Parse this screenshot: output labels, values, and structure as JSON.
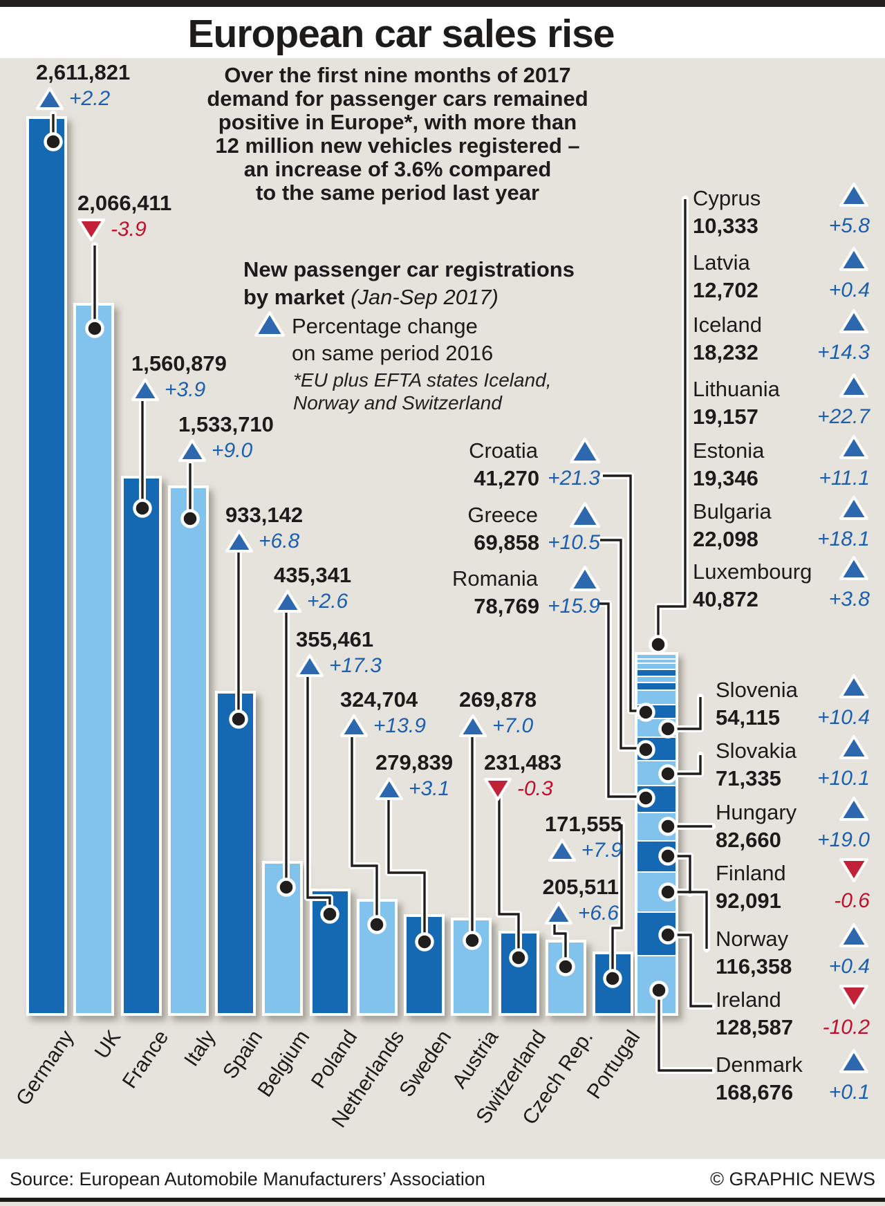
{
  "title": "European car sales rise",
  "intro_lines": [
    "Over the first nine months of 2017",
    "demand for passenger cars remained",
    "positive in Europe*, with more than",
    "12 million new vehicles registered –",
    "an increase of 3.6% compared",
    "to the same period last year"
  ],
  "subtitle": {
    "line1": "New passenger car registrations",
    "line2_bold": "by market",
    "line2_italic": " (Jan-Sep 2017)"
  },
  "legend": {
    "arrow_icon": "up-arrow",
    "label_line1": "Percentage change",
    "label_line2": "on same period 2016",
    "footnote_line1": "*EU plus EFTA states Iceland,",
    "footnote_line2": "Norway and Switzerland"
  },
  "footer": {
    "source": "Source: European Automobile Manufacturers’ Association",
    "credit": "© GRAPHIC NEWS"
  },
  "colors": {
    "background": "#e6e3dc",
    "dark_bar": "#1569b3",
    "light_bar": "#82c3ee",
    "up_arrow": "#2d68af",
    "down_arrow": "#c22237",
    "pct_up_text": "#1c5fae",
    "pct_down_text": "#c00f2d",
    "ink": "#1c1b19"
  },
  "chart_data": {
    "type": "bar",
    "title": "New passenger car registrations by market (Jan-Sep 2017)",
    "note": "Triangle markers show percentage change on same period 2016; *EU plus EFTA states Iceland, Norway and Switzerland",
    "bars": [
      {
        "country": "Germany",
        "value": 2611821,
        "value_label": "2,611,821",
        "pct": 2.2,
        "pct_label": "+2.2",
        "direction": "up",
        "shade": "dark"
      },
      {
        "country": "UK",
        "value": 2066411,
        "value_label": "2,066,411",
        "pct": -3.9,
        "pct_label": "-3.9",
        "direction": "down",
        "shade": "light"
      },
      {
        "country": "France",
        "value": 1560879,
        "value_label": "1,560,879",
        "pct": 3.9,
        "pct_label": "+3.9",
        "direction": "up",
        "shade": "dark"
      },
      {
        "country": "Italy",
        "value": 1533710,
        "value_label": "1,533,710",
        "pct": 9.0,
        "pct_label": "+9.0",
        "direction": "up",
        "shade": "light"
      },
      {
        "country": "Spain",
        "value": 933142,
        "value_label": "933,142",
        "pct": 6.8,
        "pct_label": "+6.8",
        "direction": "up",
        "shade": "dark"
      },
      {
        "country": "Belgium",
        "value": 435341,
        "value_label": "435,341",
        "pct": 2.6,
        "pct_label": "+2.6",
        "direction": "up",
        "shade": "light"
      },
      {
        "country": "Poland",
        "value": 355461,
        "value_label": "355,461",
        "pct": 17.3,
        "pct_label": "+17.3",
        "direction": "up",
        "shade": "dark"
      },
      {
        "country": "Netherlands",
        "value": 324704,
        "value_label": "324,704",
        "pct": 13.9,
        "pct_label": "+13.9",
        "direction": "up",
        "shade": "light"
      },
      {
        "country": "Sweden",
        "value": 279839,
        "value_label": "279,839",
        "pct": 3.1,
        "pct_label": "+3.1",
        "direction": "up",
        "shade": "dark"
      },
      {
        "country": "Austria",
        "value": 269878,
        "value_label": "269,878",
        "pct": 7.0,
        "pct_label": "+7.0",
        "direction": "up",
        "shade": "light"
      },
      {
        "country": "Switzerland",
        "value": 231483,
        "value_label": "231,483",
        "pct": -0.3,
        "pct_label": "-0.3",
        "direction": "down",
        "shade": "dark"
      },
      {
        "country": "Czech Rep.",
        "value": 205511,
        "value_label": "205,511",
        "pct": 6.6,
        "pct_label": "+6.6",
        "direction": "up",
        "shade": "light"
      },
      {
        "country": "Portugal",
        "value": 171555,
        "value_label": "171,555",
        "pct": 7.9,
        "pct_label": "+7.9",
        "direction": "up",
        "shade": "dark"
      }
    ],
    "stack_bars": [
      {
        "country": "Cyprus",
        "value": 10333,
        "value_label": "10,333",
        "pct": 5.8,
        "pct_label": "+5.8",
        "direction": "up",
        "shade": "light",
        "label_zone": "right-top"
      },
      {
        "country": "Latvia",
        "value": 12702,
        "value_label": "12,702",
        "pct": 0.4,
        "pct_label": "+0.4",
        "direction": "up",
        "shade": "light",
        "label_zone": "right-top"
      },
      {
        "country": "Iceland",
        "value": 18232,
        "value_label": "18,232",
        "pct": 14.3,
        "pct_label": "+14.3",
        "direction": "up",
        "shade": "light",
        "label_zone": "right-top"
      },
      {
        "country": "Lithuania",
        "value": 19157,
        "value_label": "19,157",
        "pct": 22.7,
        "pct_label": "+22.7",
        "direction": "up",
        "shade": "dark",
        "label_zone": "right-top"
      },
      {
        "country": "Estonia",
        "value": 19346,
        "value_label": "19,346",
        "pct": 11.1,
        "pct_label": "+11.1",
        "direction": "up",
        "shade": "light",
        "label_zone": "right-top"
      },
      {
        "country": "Bulgaria",
        "value": 22098,
        "value_label": "22,098",
        "pct": 18.1,
        "pct_label": "+18.1",
        "direction": "up",
        "shade": "dark",
        "label_zone": "right-top"
      },
      {
        "country": "Luxembourg",
        "value": 40872,
        "value_label": "40,872",
        "pct": 3.8,
        "pct_label": "+3.8",
        "direction": "up",
        "shade": "light",
        "label_zone": "right-top"
      },
      {
        "country": "Croatia",
        "value": 41270,
        "value_label": "41,270",
        "pct": 21.3,
        "pct_label": "+21.3",
        "direction": "up",
        "shade": "dark",
        "label_zone": "mid"
      },
      {
        "country": "Slovenia",
        "value": 54115,
        "value_label": "54,115",
        "pct": 10.4,
        "pct_label": "+10.4",
        "direction": "up",
        "shade": "light",
        "label_zone": "right-bottom"
      },
      {
        "country": "Greece",
        "value": 69858,
        "value_label": "69,858",
        "pct": 10.5,
        "pct_label": "+10.5",
        "direction": "up",
        "shade": "dark",
        "label_zone": "mid"
      },
      {
        "country": "Slovakia",
        "value": 71335,
        "value_label": "71,335",
        "pct": 10.1,
        "pct_label": "+10.1",
        "direction": "up",
        "shade": "light",
        "label_zone": "right-bottom"
      },
      {
        "country": "Romania",
        "value": 78769,
        "value_label": "78,769",
        "pct": 15.9,
        "pct_label": "+15.9",
        "direction": "up",
        "shade": "dark",
        "label_zone": "mid"
      },
      {
        "country": "Hungary",
        "value": 82660,
        "value_label": "82,660",
        "pct": 19.0,
        "pct_label": "+19.0",
        "direction": "up",
        "shade": "light",
        "label_zone": "right-bottom"
      },
      {
        "country": "Finland",
        "value": 92091,
        "value_label": "92,091",
        "pct": -0.6,
        "pct_label": "-0.6",
        "direction": "down",
        "shade": "dark",
        "label_zone": "right-bottom"
      },
      {
        "country": "Norway",
        "value": 116358,
        "value_label": "116,358",
        "pct": 0.4,
        "pct_label": "+0.4",
        "direction": "up",
        "shade": "light",
        "label_zone": "right-bottom"
      },
      {
        "country": "Ireland",
        "value": 128587,
        "value_label": "128,587",
        "pct": -10.2,
        "pct_label": "-10.2",
        "direction": "down",
        "shade": "dark",
        "label_zone": "right-bottom"
      },
      {
        "country": "Denmark",
        "value": 168676,
        "value_label": "168,676",
        "pct": 0.1,
        "pct_label": "+0.1",
        "direction": "up",
        "shade": "light",
        "label_zone": "right-bottom"
      }
    ],
    "baseline_note": "single bars left-to-right largest to smallest; 17 smallest markets combined in one stacked column",
    "grid": false,
    "legend_position": "upper-middle"
  }
}
